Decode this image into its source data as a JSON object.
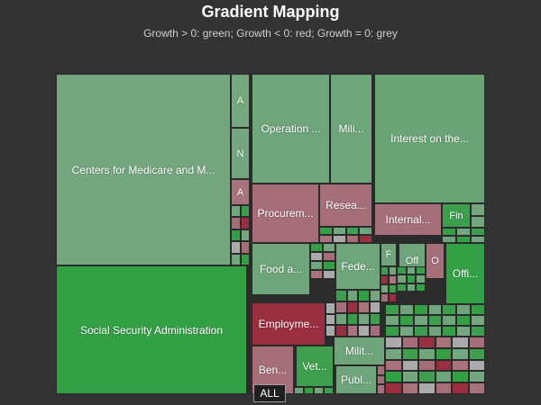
{
  "title": "Gradient Mapping",
  "subtitle": "Growth > 0: green; Growth < 0: red; Growth = 0: grey",
  "all_button": "ALL",
  "colors": {
    "background": "#333333",
    "positive": "#2e9e44",
    "light_positive": "#6aa577",
    "negative": "#9a2f40",
    "light_negative": "#a66e78",
    "neutral": "#aaaaaa"
  },
  "chart_data": {
    "type": "treemap",
    "title": "Gradient Mapping",
    "subtitle": "Growth > 0: green; Growth < 0: red; Growth = 0: grey",
    "color_rule": {
      "positive": "green",
      "negative": "red",
      "zero": "grey"
    },
    "nodes": [
      {
        "label": "Centers for Medicare and M...",
        "color": "#74a77f"
      },
      {
        "label": "Social Security Administration",
        "color": "#34a046"
      },
      {
        "label": "A",
        "color": "#76a880"
      },
      {
        "label": "N",
        "color": "#74a77f"
      },
      {
        "label": "A",
        "color": "#a9737c"
      },
      {
        "label": "Operation ...",
        "color": "#6ea57a"
      },
      {
        "label": "Mili...",
        "color": "#6ea57a"
      },
      {
        "label": "Interest on the...",
        "color": "#6aa577"
      },
      {
        "label": "Procurem...",
        "color": "#a66e78"
      },
      {
        "label": "Resea...",
        "color": "#a66e78"
      },
      {
        "label": "Internal...",
        "color": "#a66e78"
      },
      {
        "label": "Fin",
        "color": "#3d9f4d"
      },
      {
        "label": "Food a...",
        "color": "#6ea57a"
      },
      {
        "label": "Fede...",
        "color": "#6ea57a"
      },
      {
        "label": "F",
        "color": "#6ea57a"
      },
      {
        "label": "Off",
        "color": "#6ea57a"
      },
      {
        "label": "O",
        "color": "#a66e78"
      },
      {
        "label": "Offi...",
        "color": "#34a046"
      },
      {
        "label": "Employme...",
        "color": "#9a2f40"
      },
      {
        "label": "Ben...",
        "color": "#a66e78"
      },
      {
        "label": "Vet...",
        "color": "#3d9f4d"
      },
      {
        "label": "Milit...",
        "color": "#6ea57a"
      },
      {
        "label": "Publ...",
        "color": "#6ea57a"
      }
    ]
  }
}
